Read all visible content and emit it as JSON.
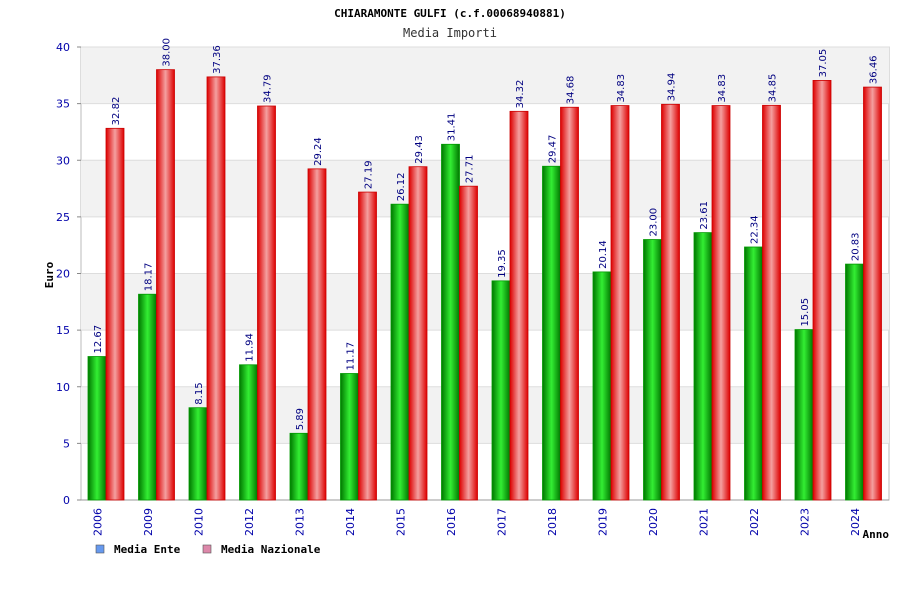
{
  "chart_data": {
    "type": "bar",
    "title": "CHIARAMONTE GULFI (c.f.00068940881)",
    "subtitle": "Media Importi",
    "xlabel": "Anno",
    "ylabel": "Euro",
    "ylim": [
      0,
      40
    ],
    "yticks": [
      "0",
      "5",
      "10",
      "15",
      "20",
      "25",
      "30",
      "35",
      "40"
    ],
    "grid": true,
    "legend_position": "bottom-left",
    "categories": [
      "2006",
      "2009",
      "2010",
      "2012",
      "2013",
      "2014",
      "2015",
      "2016",
      "2017",
      "2018",
      "2019",
      "2020",
      "2021",
      "2022",
      "2023",
      "2024"
    ],
    "series": [
      {
        "name": "Media Ente",
        "color": "#00cc00",
        "legend_color": "#6699ee",
        "values": [
          12.67,
          18.17,
          8.15,
          11.94,
          5.89,
          11.17,
          26.12,
          31.41,
          19.35,
          29.47,
          20.14,
          23.0,
          23.61,
          22.34,
          15.05,
          20.83
        ],
        "labels": [
          "12.67",
          "18.17",
          "8.15",
          "11.94",
          "5.89",
          "11.17",
          "26.12",
          "31.41",
          "19.35",
          "29.47",
          "20.14",
          "23.00",
          "23.61",
          "22.34",
          "15.05",
          "20.83"
        ]
      },
      {
        "name": "Media Nazionale",
        "color": "#ee1111",
        "legend_color": "#dd88aa",
        "values": [
          32.82,
          38.0,
          37.36,
          34.79,
          29.24,
          27.19,
          29.43,
          27.71,
          34.32,
          34.68,
          34.83,
          34.94,
          34.83,
          34.85,
          37.05,
          36.46
        ],
        "labels": [
          "32.82",
          "38.00",
          "37.36",
          "34.79",
          "29.24",
          "27.19",
          "29.43",
          "27.71",
          "34.32",
          "34.68",
          "34.83",
          "34.94",
          "34.83",
          "34.85",
          "37.05",
          "36.46"
        ]
      }
    ]
  }
}
